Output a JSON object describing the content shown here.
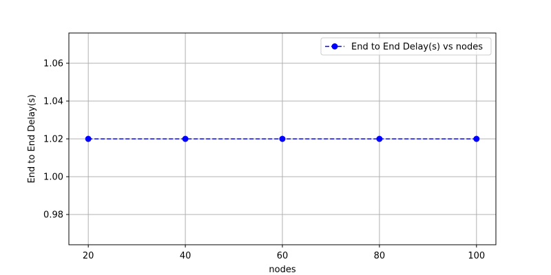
{
  "chart_data": {
    "type": "line",
    "x": [
      20,
      40,
      60,
      80,
      100
    ],
    "series": [
      {
        "name": "End to End Delay(s) vs nodes",
        "values": [
          1.02,
          1.02,
          1.02,
          1.02,
          1.02
        ],
        "color": "#0000ff",
        "line_style": "dashed",
        "marker": "circle"
      }
    ],
    "xlabel": "nodes",
    "ylabel": "End to End Delay(s)",
    "xticks": [
      20,
      40,
      60,
      80,
      100
    ],
    "yticks": [
      0.98,
      1.0,
      1.02,
      1.04,
      1.06
    ],
    "ytick_labels": [
      "0.98",
      "1.00",
      "1.02",
      "1.04",
      "1.06"
    ],
    "xlim": [
      16,
      104
    ],
    "ylim": [
      0.964,
      1.076
    ],
    "grid": true,
    "legend_position": "top-right"
  }
}
